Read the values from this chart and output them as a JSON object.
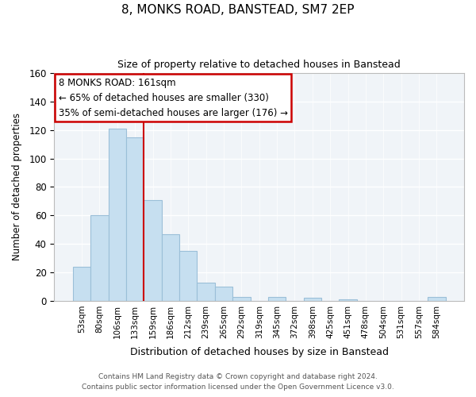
{
  "title": "8, MONKS ROAD, BANSTEAD, SM7 2EP",
  "subtitle": "Size of property relative to detached houses in Banstead",
  "xlabel": "Distribution of detached houses by size in Banstead",
  "ylabel": "Number of detached properties",
  "bar_labels": [
    "53sqm",
    "80sqm",
    "106sqm",
    "133sqm",
    "159sqm",
    "186sqm",
    "212sqm",
    "239sqm",
    "265sqm",
    "292sqm",
    "319sqm",
    "345sqm",
    "372sqm",
    "398sqm",
    "425sqm",
    "451sqm",
    "478sqm",
    "504sqm",
    "531sqm",
    "557sqm",
    "584sqm"
  ],
  "bar_heights": [
    24,
    60,
    121,
    115,
    71,
    47,
    35,
    13,
    10,
    3,
    0,
    3,
    0,
    2,
    0,
    1,
    0,
    0,
    0,
    0,
    3
  ],
  "bar_color": "#c6dff0",
  "bar_edge_color": "#9bbfd8",
  "vline_index": 4,
  "vline_color": "#cc0000",
  "annotation_line1": "8 MONKS ROAD: 161sqm",
  "annotation_line2": "← 65% of detached houses are smaller (330)",
  "annotation_line3": "35% of semi-detached houses are larger (176) →",
  "annotation_box_color": "white",
  "annotation_box_edge_color": "#cc0000",
  "ylim": [
    0,
    160
  ],
  "yticks": [
    0,
    20,
    40,
    60,
    80,
    100,
    120,
    140,
    160
  ],
  "footer_line1": "Contains HM Land Registry data © Crown copyright and database right 2024.",
  "footer_line2": "Contains public sector information licensed under the Open Government Licence v3.0.",
  "fig_width": 6.0,
  "fig_height": 5.0,
  "dpi": 100,
  "bg_color": "#f0f4f8"
}
